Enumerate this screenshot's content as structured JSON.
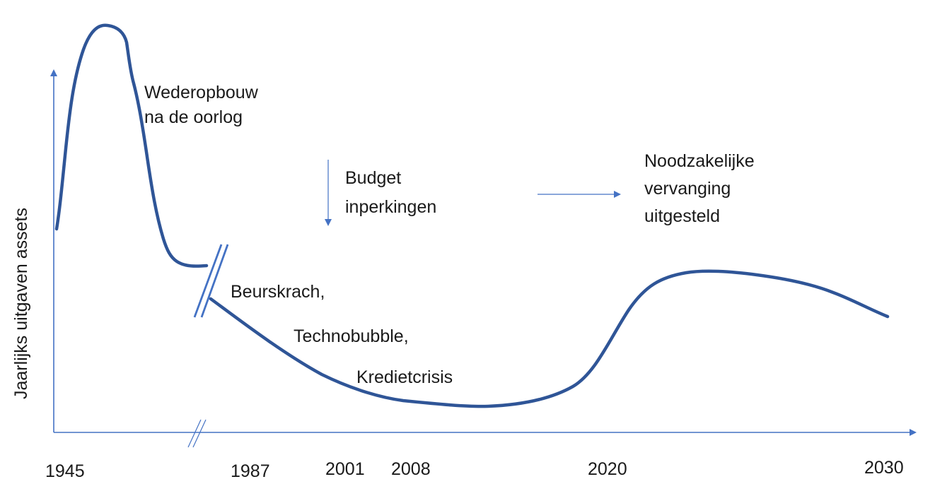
{
  "y_axis_label": "Jaarlijks uitgaven assets",
  "x_ticks": [
    "1945",
    "1987",
    "2001",
    "2008",
    "2020",
    "2030"
  ],
  "annotations": {
    "reconstruction": [
      "Wederopbouw",
      "na de oorlog"
    ],
    "budget": [
      "Budget",
      "inperkingen"
    ],
    "replacement": [
      "Noodzakelijke",
      "vervanging",
      "uitgesteld"
    ],
    "crisis": [
      "Beurskrach,",
      "Technobubble,",
      "Kredietcrisis"
    ]
  },
  "colors": {
    "curve": "#2f5597",
    "axis": "#4472c4",
    "text": "#1a1a1a"
  }
}
